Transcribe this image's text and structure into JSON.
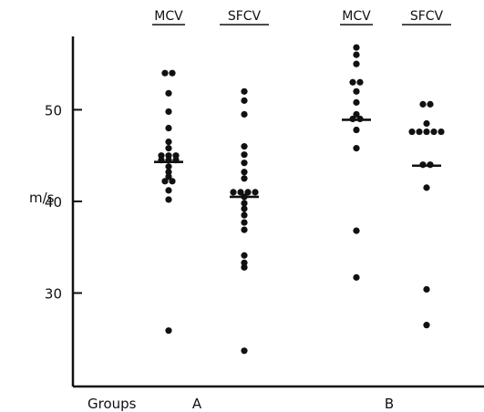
{
  "chart_data": {
    "type": "scatter",
    "ylabel": "m/s",
    "xlabel": "Groups",
    "yticks": [
      30,
      40,
      50
    ],
    "ylim": [
      19.8,
      58
    ],
    "grid": false,
    "groups": [
      {
        "label": "A",
        "series": [
          {
            "name": "MCV",
            "mean": 44.3,
            "values": [
              54,
              54,
              51.8,
              49.8,
              48,
              46.5,
              45.8,
              45,
              45,
              44.8,
              44.5,
              44.5,
              44.3,
              43.8,
              43.2,
              42.7,
              42.2,
              41.8,
              41.2,
              40.2,
              25.9
            ]
          },
          {
            "name": "SFCV",
            "mean": 40.5,
            "values": [
              52,
              51,
              49.5,
              46,
              45.1,
              44.2,
              43.2,
              42.5,
              41,
              41,
              41,
              41,
              40.5,
              39.8,
              39.2,
              38.5,
              37.7,
              36.9,
              34.1,
              33.3,
              32.8,
              23.7
            ]
          }
        ]
      },
      {
        "label": "B",
        "series": [
          {
            "name": "MCV",
            "mean": 48.9,
            "values": [
              56.8,
              56,
              55,
              53,
              53,
              52,
              50.8,
              49.5,
              49,
              48.8,
              47.8,
              45.8,
              36.8,
              31.7
            ]
          },
          {
            "name": "SFCV",
            "mean": 43.9,
            "values": [
              50.6,
              50.6,
              48.5,
              47.6,
              47.6,
              47.6,
              47.6,
              47.6,
              44,
              43.8,
              41.5,
              30.4,
              26.5
            ]
          }
        ]
      }
    ]
  }
}
